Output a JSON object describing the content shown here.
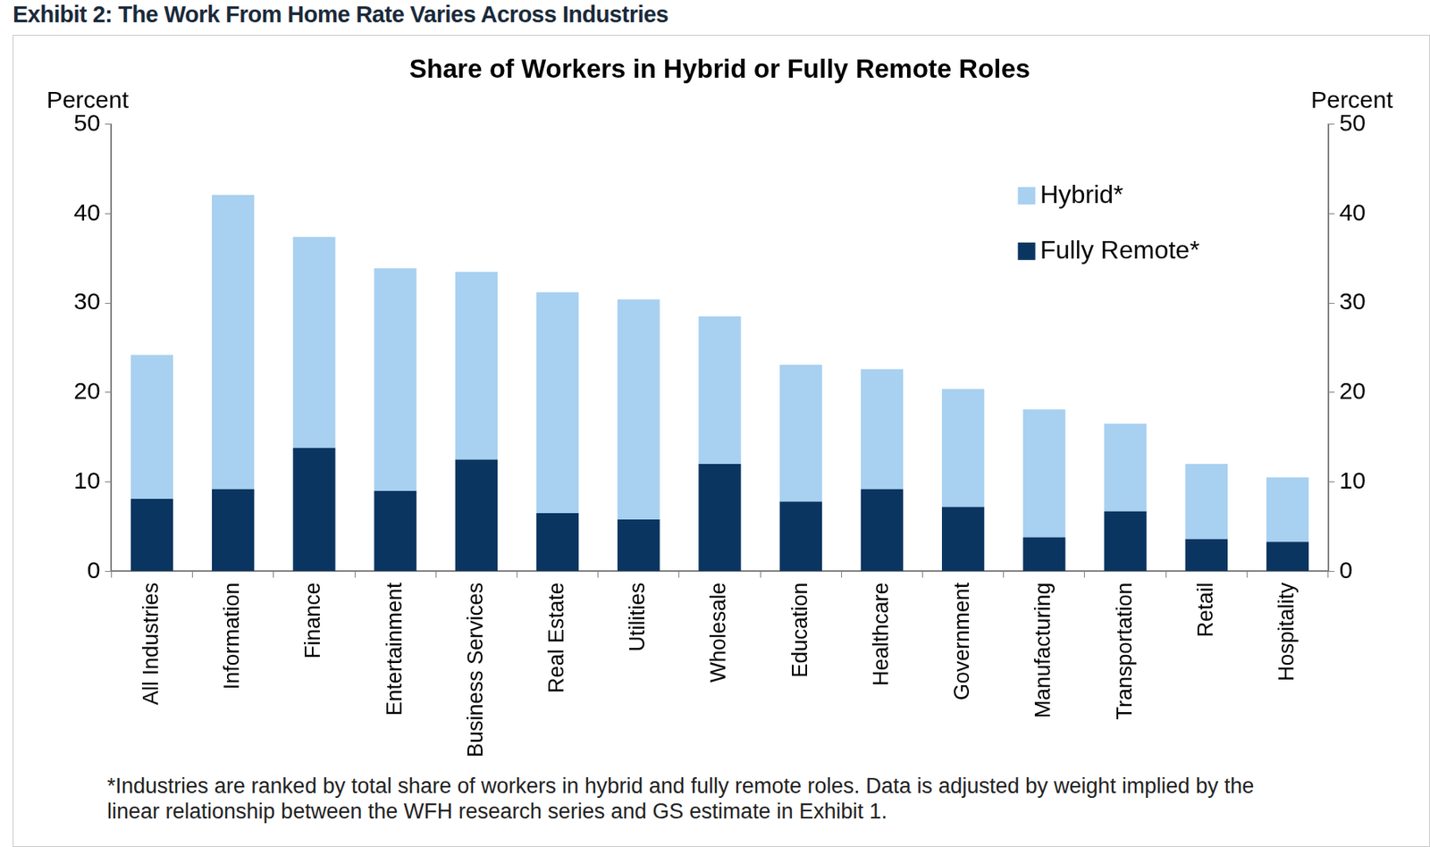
{
  "chart_data": {
    "type": "bar",
    "heading": "Exhibit 2: The Work From Home Rate Varies Across Industries",
    "title": "Share of Workers in Hybrid or Fully Remote Roles",
    "ylabel": "Percent",
    "y2label": "Percent",
    "footnote": "*Industries are ranked by total share of workers in hybrid and fully remote roles. Data is adjusted by weight implied by the linear relationship between the WFH research series and GS estimate in Exhibit 1.",
    "categories": [
      "All Industries",
      "Information",
      "Finance",
      "Entertainment",
      "Business Services",
      "Real Estate",
      "Utilities",
      "Wholesale",
      "Education",
      "Healthcare",
      "Government",
      "Manufacturing",
      "Transportation",
      "Retail",
      "Hospitality"
    ],
    "series": [
      {
        "name": "Hybrid*",
        "color": "#a8d0f0",
        "values": [
          16.1,
          32.9,
          23.6,
          24.9,
          21.0,
          24.7,
          24.6,
          16.5,
          15.3,
          13.4,
          13.2,
          14.3,
          9.8,
          8.4,
          7.2
        ]
      },
      {
        "name": "Fully Remote*",
        "color": "#0b3561",
        "values": [
          8.1,
          9.2,
          13.8,
          9.0,
          12.5,
          6.5,
          5.8,
          12.0,
          7.8,
          9.2,
          7.2,
          3.8,
          6.7,
          3.6,
          3.3
        ]
      }
    ],
    "stacked": true,
    "ylim": [
      0,
      50
    ],
    "yticks": [
      0,
      10,
      20,
      30,
      40,
      50
    ],
    "y2lim": [
      0,
      50
    ],
    "y2ticks": [
      0,
      10,
      20,
      30,
      40,
      50
    ],
    "grid": false,
    "legend": "upper right",
    "data_labels": false
  }
}
